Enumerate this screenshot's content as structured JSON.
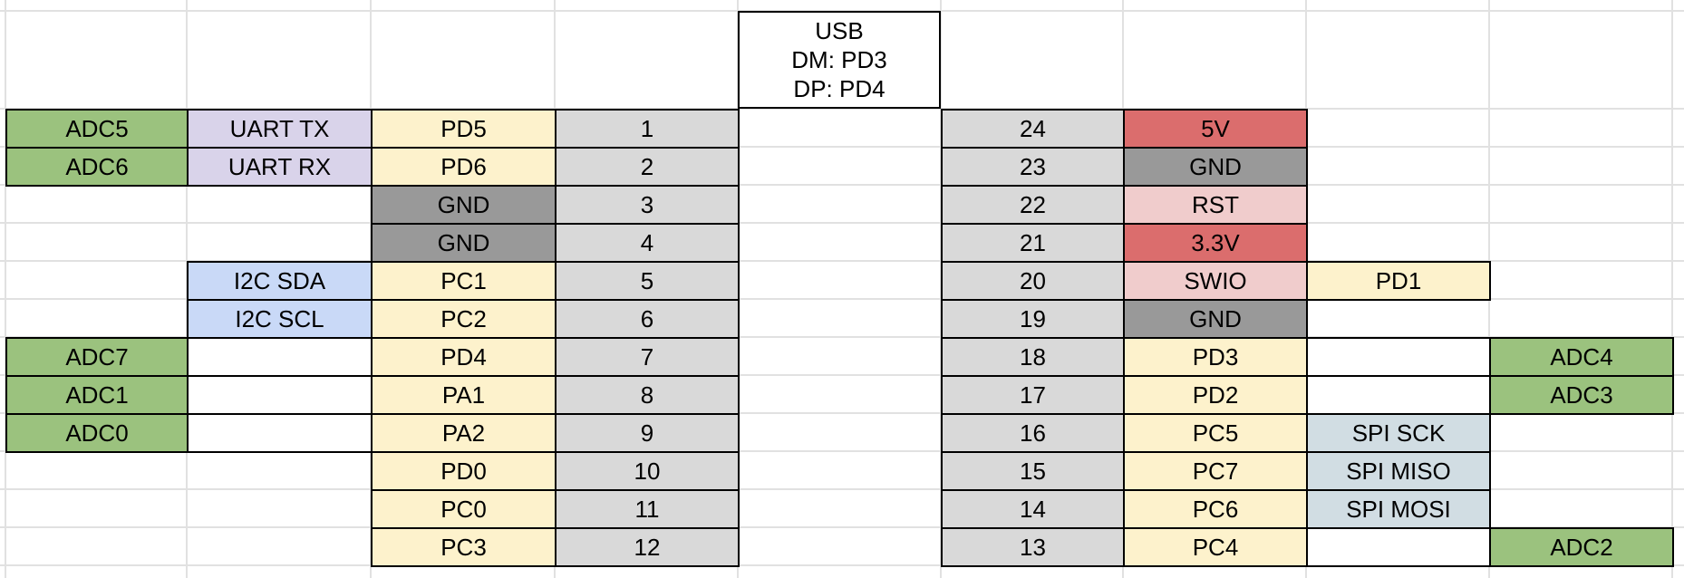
{
  "usb": {
    "title": "USB",
    "dm": "DM: PD3",
    "dp": "DP: PD4"
  },
  "colors": {
    "adc": "#9bc27e",
    "uart": "#d9d3ea",
    "gpio": "#fdf2cc",
    "pin": "#d9d9d9",
    "gnd": "#999999",
    "i2c": "#c9d9f7",
    "power": "#db6d6d",
    "debug": "#f0cccc",
    "spi": "#d1dde3",
    "empty": "#ffffff"
  },
  "left_rows": [
    {
      "pin": "1",
      "port": "PD5",
      "fn": "UART TX",
      "fn_type": "uart",
      "adc": "ADC5",
      "port_type": "gpio"
    },
    {
      "pin": "2",
      "port": "PD6",
      "fn": "UART RX",
      "fn_type": "uart",
      "adc": "ADC6",
      "port_type": "gpio"
    },
    {
      "pin": "3",
      "port": "GND",
      "fn": "",
      "fn_type": "none",
      "adc": "",
      "port_type": "gnd"
    },
    {
      "pin": "4",
      "port": "GND",
      "fn": "",
      "fn_type": "none",
      "adc": "",
      "port_type": "gnd"
    },
    {
      "pin": "5",
      "port": "PC1",
      "fn": "I2C SDA",
      "fn_type": "i2c",
      "adc": "",
      "port_type": "gpio"
    },
    {
      "pin": "6",
      "port": "PC2",
      "fn": "I2C SCL",
      "fn_type": "i2c",
      "adc": "",
      "port_type": "gpio"
    },
    {
      "pin": "7",
      "port": "PD4",
      "fn": "",
      "fn_type": "empty",
      "adc": "ADC7",
      "port_type": "gpio"
    },
    {
      "pin": "8",
      "port": "PA1",
      "fn": "",
      "fn_type": "empty",
      "adc": "ADC1",
      "port_type": "gpio"
    },
    {
      "pin": "9",
      "port": "PA2",
      "fn": "",
      "fn_type": "empty",
      "adc": "ADC0",
      "port_type": "gpio"
    },
    {
      "pin": "10",
      "port": "PD0",
      "fn": "",
      "fn_type": "none",
      "adc": "",
      "port_type": "gpio"
    },
    {
      "pin": "11",
      "port": "PC0",
      "fn": "",
      "fn_type": "none",
      "adc": "",
      "port_type": "gpio"
    },
    {
      "pin": "12",
      "port": "PC3",
      "fn": "",
      "fn_type": "none",
      "adc": "",
      "port_type": "gpio"
    }
  ],
  "right_rows": [
    {
      "pin": "24",
      "port": "5V",
      "port_type": "power",
      "fn": "",
      "fn_type": "none",
      "adc": ""
    },
    {
      "pin": "23",
      "port": "GND",
      "port_type": "gnd",
      "fn": "",
      "fn_type": "none",
      "adc": ""
    },
    {
      "pin": "22",
      "port": "RST",
      "port_type": "debug",
      "fn": "",
      "fn_type": "none",
      "adc": ""
    },
    {
      "pin": "21",
      "port": "3.3V",
      "port_type": "power",
      "fn": "",
      "fn_type": "none",
      "adc": ""
    },
    {
      "pin": "20",
      "port": "SWIO",
      "port_type": "debug",
      "fn": "PD1",
      "fn_type": "gpio",
      "adc": ""
    },
    {
      "pin": "19",
      "port": "GND",
      "port_type": "gnd",
      "fn": "",
      "fn_type": "none",
      "adc": ""
    },
    {
      "pin": "18",
      "port": "PD3",
      "port_type": "gpio",
      "fn": "",
      "fn_type": "empty",
      "adc": "ADC4"
    },
    {
      "pin": "17",
      "port": "PD2",
      "port_type": "gpio",
      "fn": "",
      "fn_type": "empty",
      "adc": "ADC3"
    },
    {
      "pin": "16",
      "port": "PC5",
      "port_type": "gpio",
      "fn": "SPI SCK",
      "fn_type": "spi",
      "adc": ""
    },
    {
      "pin": "15",
      "port": "PC7",
      "port_type": "gpio",
      "fn": "SPI MISO",
      "fn_type": "spi",
      "adc": ""
    },
    {
      "pin": "14",
      "port": "PC6",
      "port_type": "gpio",
      "fn": "SPI MOSI",
      "fn_type": "spi",
      "adc": ""
    },
    {
      "pin": "13",
      "port": "PC4",
      "port_type": "gpio",
      "fn": "",
      "fn_type": "empty",
      "adc": "ADC2"
    }
  ]
}
